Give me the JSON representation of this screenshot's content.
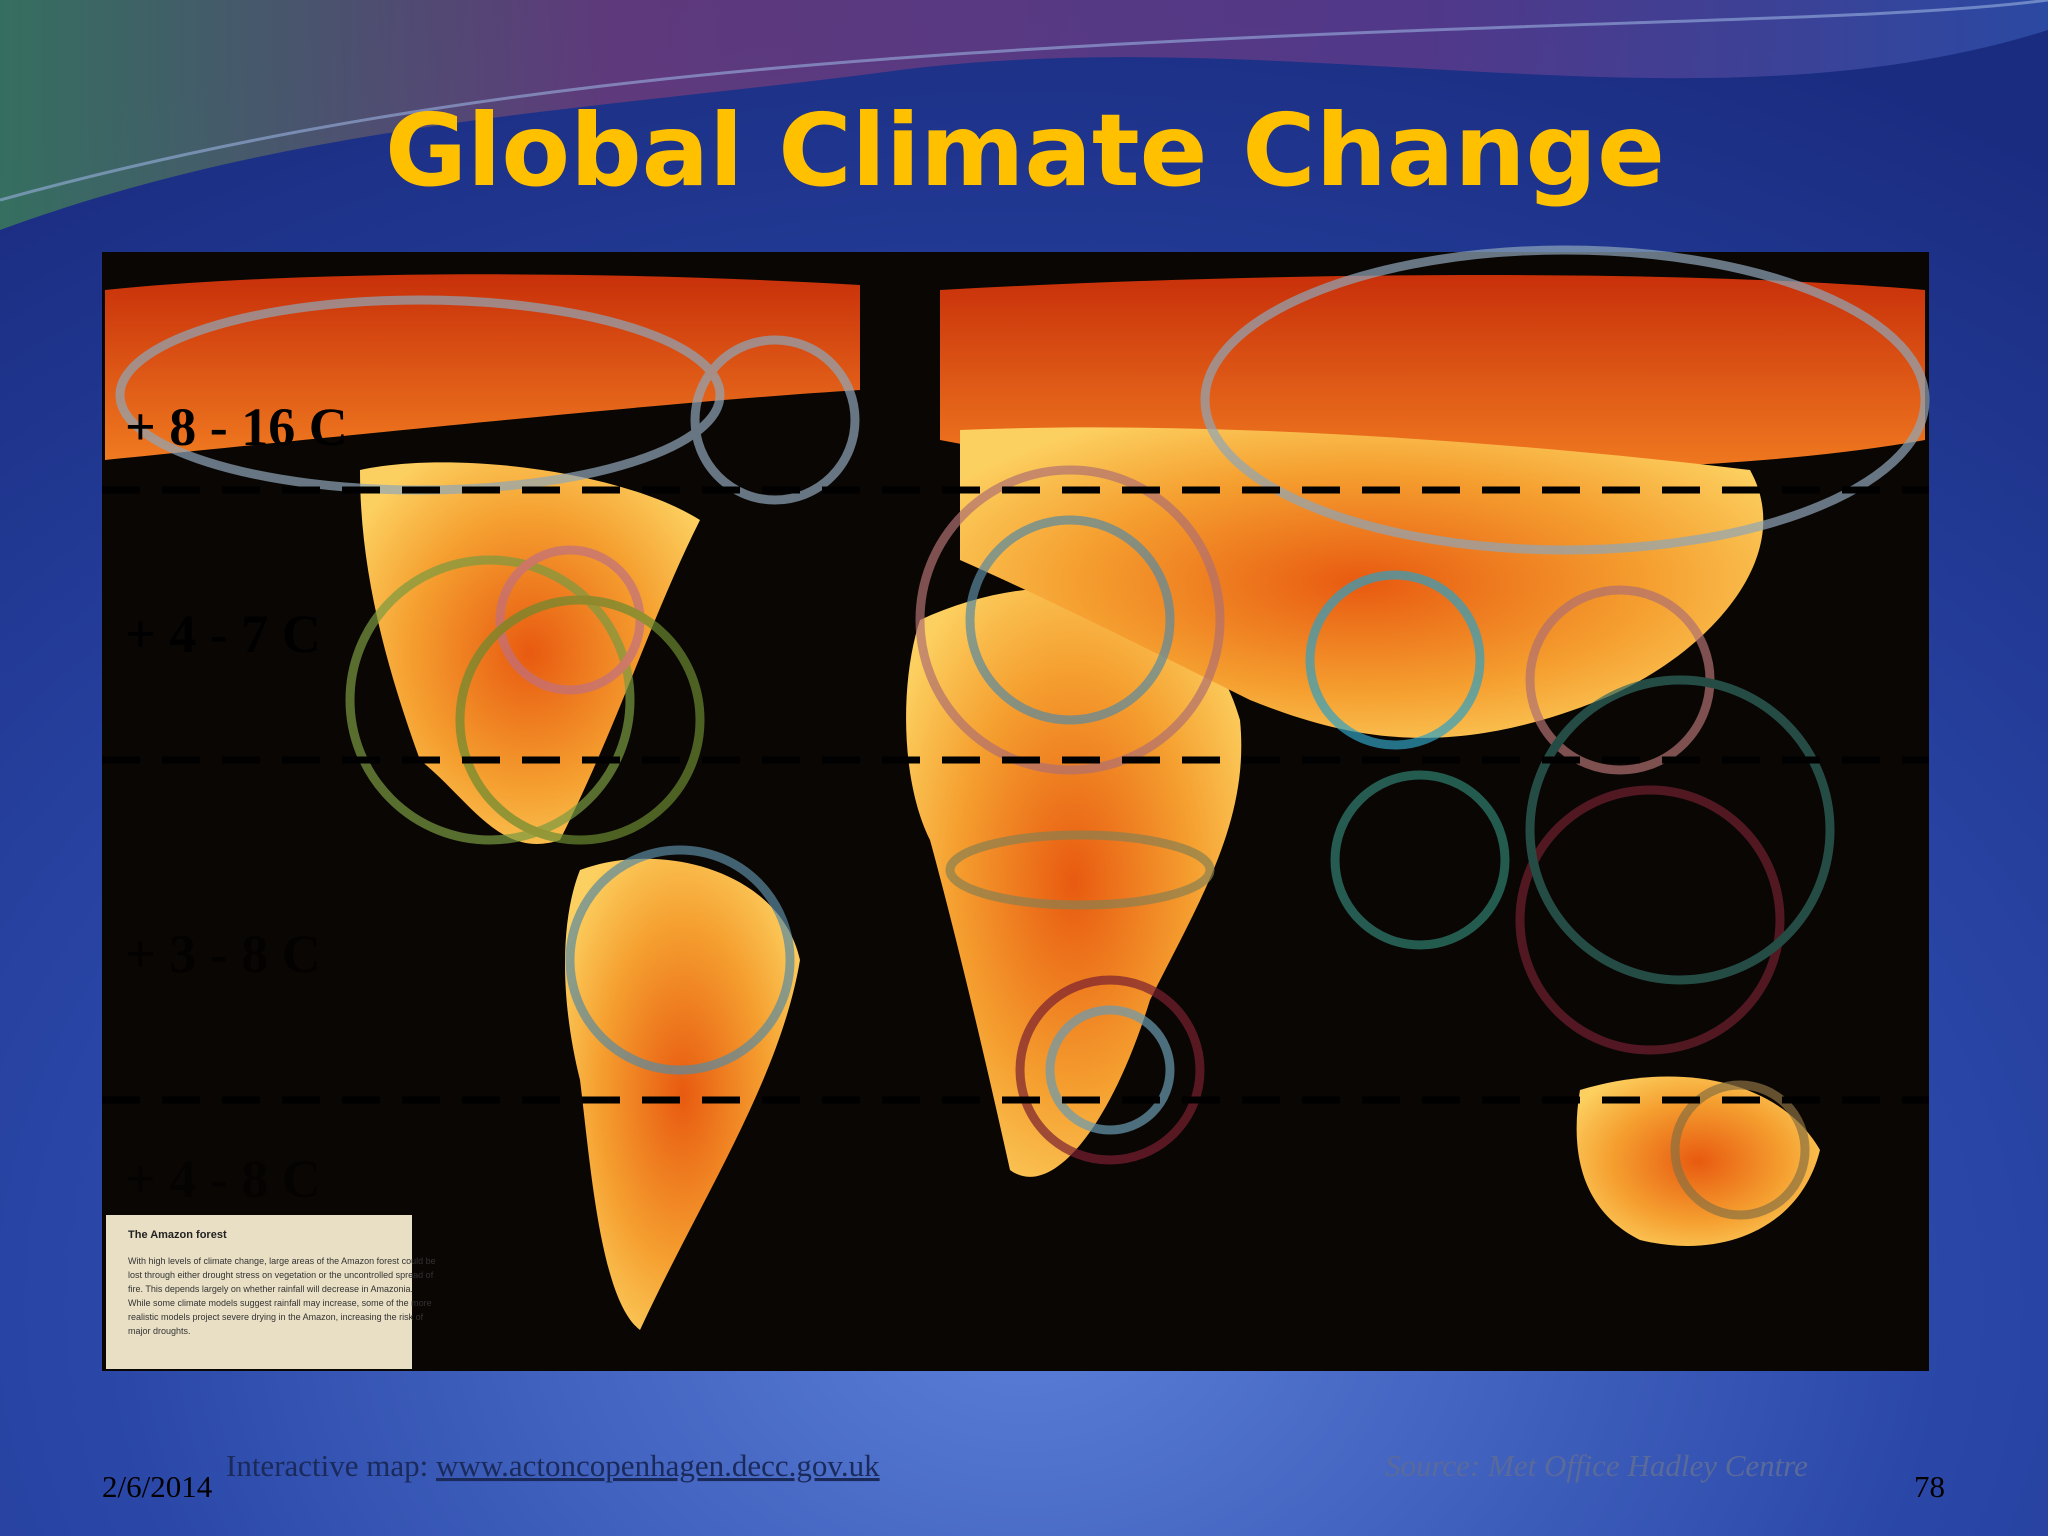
{
  "header": {
    "title": "Global Climate Change"
  },
  "map": {
    "bands": [
      "+ 8 - 16  C",
      "+ 4 - 7  C",
      "+ 3 - 8  C",
      "+ 4 - 8  C"
    ],
    "inset": {
      "title": "The Amazon forest",
      "text": [
        "With high levels of climate change, large areas of the Amazon forest could be",
        "lost through either drought stress on vegetation or the uncontrolled spread of",
        "fire. This depends largely on whether rainfall will decrease in Amazonia.",
        "While some climate models suggest rainfall may increase, some of the more",
        "realistic models project severe drying in the Amazon, increasing the risk of",
        "major droughts."
      ]
    }
  },
  "footer": {
    "caption": "Interactive map:",
    "link": "www.actoncopenhagen.decc.gov.uk",
    "source": "Source: Met Office Hadley Centre",
    "date": "2/6/2014",
    "page": "78"
  }
}
